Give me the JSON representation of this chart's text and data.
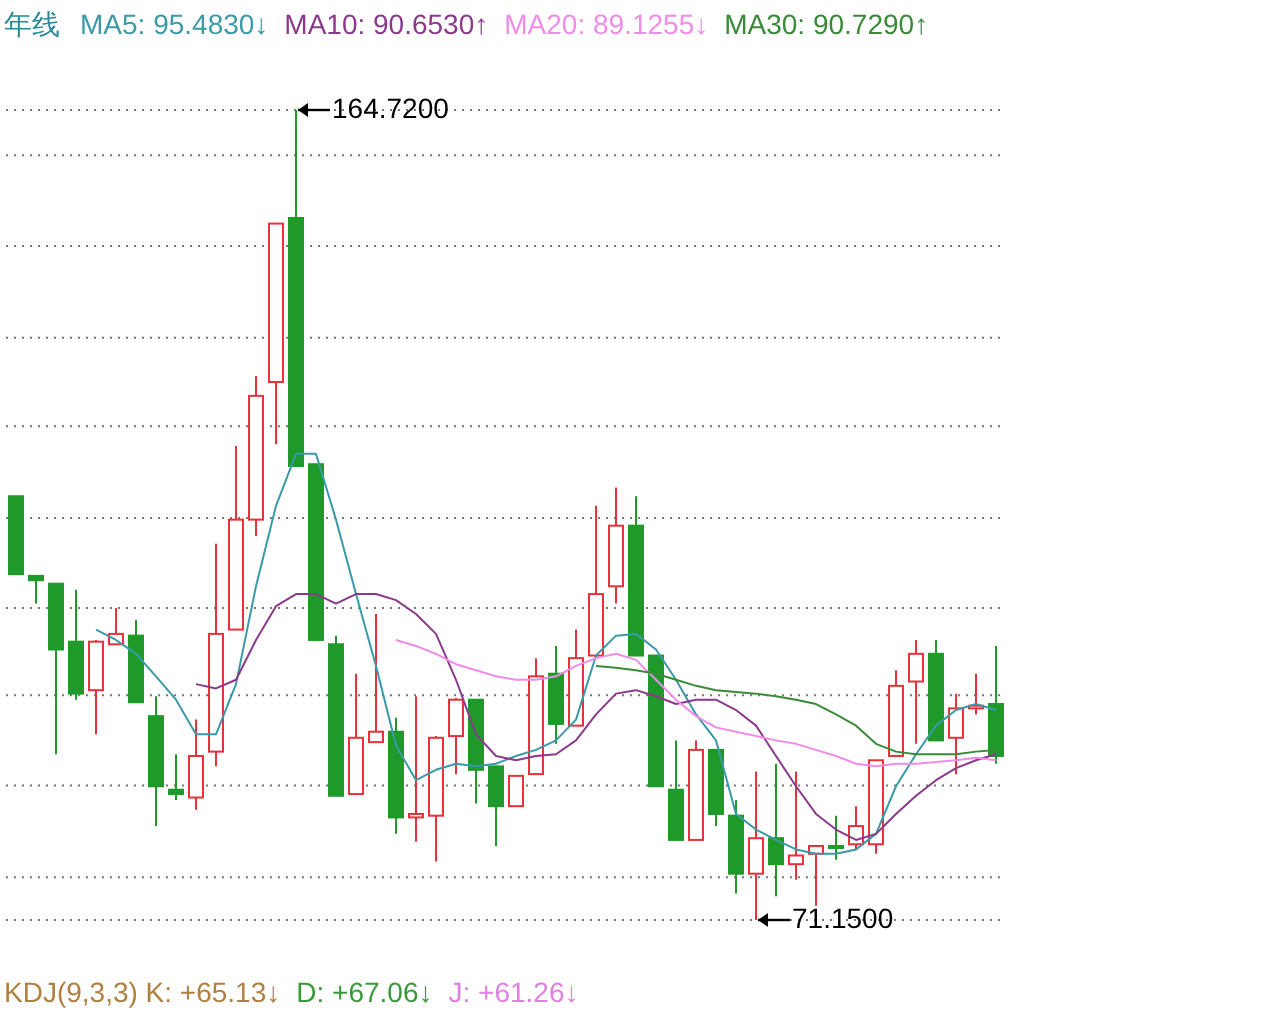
{
  "chart_data": {
    "type": "candlestick",
    "title": "年线",
    "categories": [
      null,
      null,
      null,
      null,
      null,
      null,
      null,
      null,
      null,
      null,
      null,
      null,
      null,
      null,
      null,
      null,
      null,
      null,
      null,
      null,
      null,
      null,
      null,
      null,
      null,
      null,
      null,
      null,
      null,
      null,
      null,
      null,
      null,
      null,
      null,
      null,
      null,
      null,
      null,
      null,
      null,
      null,
      null,
      null,
      null,
      null,
      null,
      null,
      null,
      null
    ],
    "ohlc": [
      [
        120.1,
        120.1,
        111.1,
        111.1
      ],
      [
        110.9,
        110.9,
        107.7,
        110.4
      ],
      [
        110.0,
        110.0,
        90.3,
        102.4
      ],
      [
        103.3,
        109.3,
        96.6,
        97.3
      ],
      [
        97.7,
        103.5,
        92.6,
        103.3
      ],
      [
        103.0,
        107.2,
        103.0,
        104.2
      ],
      [
        104.0,
        105.8,
        96.3,
        96.3
      ],
      [
        94.7,
        97.0,
        82.0,
        86.6
      ],
      [
        86.2,
        90.3,
        85.0,
        85.7
      ],
      [
        85.3,
        94.3,
        83.9,
        90.1
      ],
      [
        90.6,
        114.6,
        88.9,
        104.2
      ],
      [
        104.7,
        125.9,
        104.7,
        117.4
      ],
      [
        117.4,
        134.0,
        115.5,
        131.7
      ],
      [
        133.3,
        151.6,
        126.1,
        151.6
      ],
      [
        152.25,
        164.72,
        123.6,
        123.6
      ],
      [
        123.8,
        123.8,
        103.5,
        103.5
      ],
      [
        103.0,
        104.0,
        85.5,
        85.5
      ],
      [
        85.7,
        99.6,
        85.7,
        92.2
      ],
      [
        91.7,
        106.5,
        91.7,
        92.9
      ],
      [
        92.9,
        94.5,
        81.1,
        83.0
      ],
      [
        83.0,
        97.0,
        80.2,
        83.4
      ],
      [
        83.2,
        92.4,
        77.9,
        92.2
      ],
      [
        92.4,
        96.8,
        88.0,
        96.6
      ],
      [
        96.6,
        96.6,
        84.6,
        88.5
      ],
      [
        88.9,
        88.9,
        79.7,
        84.3
      ],
      [
        84.3,
        87.8,
        84.3,
        87.8
      ],
      [
        88.0,
        101.4,
        88.0,
        99.3
      ],
      [
        99.6,
        102.8,
        91.5,
        93.8
      ],
      [
        93.6,
        104.7,
        93.6,
        101.4
      ],
      [
        101.7,
        119.0,
        101.4,
        108.8
      ],
      [
        109.7,
        121.1,
        107.7,
        116.7
      ],
      [
        116.7,
        120.1,
        101.7,
        101.7
      ],
      [
        101.7,
        101.7,
        86.6,
        86.6
      ],
      [
        86.2,
        91.9,
        80.4,
        80.4
      ],
      [
        80.4,
        91.9,
        80.4,
        90.8
      ],
      [
        90.8,
        90.8,
        82.0,
        83.4
      ],
      [
        83.2,
        85.0,
        74.2,
        76.5
      ],
      [
        76.5,
        88.3,
        71.15,
        80.6
      ],
      [
        80.6,
        89.2,
        73.9,
        77.6
      ],
      [
        77.6,
        88.3,
        75.8,
        78.6
      ],
      [
        78.8,
        79.7,
        72.8,
        79.7
      ],
      [
        79.7,
        83.2,
        78.1,
        79.5
      ],
      [
        79.9,
        84.3,
        79.3,
        82.0
      ],
      [
        79.9,
        89.6,
        78.8,
        89.6
      ],
      [
        90.1,
        100.0,
        90.1,
        98.2
      ],
      [
        98.7,
        103.5,
        91.5,
        101.9
      ],
      [
        101.9,
        103.5,
        91.9,
        91.9
      ],
      [
        92.2,
        97.3,
        88.0,
        95.6
      ],
      [
        95.6,
        99.6,
        94.9,
        95.9
      ],
      [
        96.1,
        102.8,
        89.2,
        90.1
      ]
    ],
    "colors": [
      "#1f9a2a",
      "#1f9a2a",
      "#1f9a2a",
      "#1f9a2a",
      "#e8313a",
      "#e8313a",
      "#1f9a2a",
      "#1f9a2a",
      "#1f9a2a",
      "#e8313a",
      "#e8313a",
      "#e8313a",
      "#e8313a",
      "#e8313a",
      "#1f9a2a",
      "#1f9a2a",
      "#1f9a2a",
      "#e8313a",
      "#e8313a",
      "#1f9a2a",
      "#e8313a",
      "#e8313a",
      "#e8313a",
      "#1f9a2a",
      "#1f9a2a",
      "#e8313a",
      "#e8313a",
      "#1f9a2a",
      "#e8313a",
      "#e8313a",
      "#e8313a",
      "#1f9a2a",
      "#1f9a2a",
      "#1f9a2a",
      "#e8313a",
      "#1f9a2a",
      "#1f9a2a",
      "#e8313a",
      "#1f9a2a",
      "#e8313a",
      "#e8313a",
      "#1f9a2a",
      "#e8313a",
      "#e8313a",
      "#e8313a",
      "#e8313a",
      "#1f9a2a",
      "#e8313a",
      "#e8313a",
      "#1f9a2a"
    ],
    "series": [
      {
        "name": "MA5: 95.4830↓",
        "type": "line",
        "color": "#3a9aa8",
        "values": [
          null,
          null,
          null,
          null,
          104.7,
          103.5,
          101.9,
          99.3,
          96.6,
          92.6,
          92.6,
          98.4,
          109.7,
          119.0,
          125.0,
          125.0,
          117.4,
          108.8,
          100.5,
          91.3,
          87.3,
          88.5,
          89.2,
          88.9,
          89.2,
          90.1,
          90.8,
          91.9,
          94.3,
          101.7,
          104.0,
          104.2,
          102.4,
          98.9,
          94.9,
          91.9,
          83.4,
          81.6,
          80.4,
          79.3,
          78.8,
          78.8,
          79.3,
          81.1,
          86.6,
          90.3,
          93.6,
          95.4,
          96.1,
          95.4
        ]
      },
      {
        "name": "MA10: 90.6530↑",
        "type": "line",
        "color": "#8b3a8b",
        "values": [
          null,
          null,
          null,
          null,
          null,
          null,
          null,
          null,
          null,
          98.4,
          97.9,
          98.9,
          103.5,
          107.4,
          108.8,
          108.8,
          107.7,
          108.8,
          108.8,
          108.1,
          106.5,
          104.2,
          98.9,
          92.6,
          90.1,
          89.6,
          90.1,
          90.3,
          91.9,
          94.9,
          97.3,
          97.7,
          97.0,
          96.1,
          96.6,
          96.6,
          95.4,
          93.6,
          90.1,
          86.6,
          83.4,
          81.6,
          80.4,
          81.1,
          83.4,
          85.5,
          87.3,
          88.7,
          89.6,
          90.3
        ]
      },
      {
        "name": "MA20: 89.1255↓",
        "type": "line",
        "color": "#f08ce8",
        "values": [
          null,
          null,
          null,
          null,
          null,
          null,
          null,
          null,
          null,
          null,
          null,
          null,
          null,
          null,
          null,
          null,
          null,
          null,
          null,
          103.5,
          102.8,
          101.9,
          100.7,
          100.0,
          99.3,
          98.9,
          98.9,
          99.3,
          100.5,
          101.4,
          101.9,
          101.2,
          98.9,
          96.6,
          94.7,
          93.4,
          92.9,
          92.4,
          91.9,
          91.5,
          90.8,
          90.1,
          89.2,
          88.9,
          89.2,
          89.2,
          89.4,
          89.6,
          89.9,
          89.6
        ]
      },
      {
        "name": "MA30: 90.7290↑",
        "type": "line",
        "color": "#3a8a3a",
        "values": [
          null,
          null,
          null,
          null,
          null,
          null,
          null,
          null,
          null,
          null,
          null,
          null,
          null,
          null,
          null,
          null,
          null,
          null,
          null,
          null,
          null,
          null,
          null,
          null,
          null,
          null,
          null,
          null,
          null,
          100.5,
          100.3,
          100.0,
          99.6,
          98.9,
          98.2,
          97.7,
          97.5,
          97.3,
          97.0,
          96.6,
          96.1,
          94.9,
          93.6,
          91.5,
          90.6,
          90.3,
          90.3,
          90.3,
          90.6,
          90.8
        ]
      }
    ],
    "yticks": [
      {
        "value": 159.5,
        "label": null
      },
      {
        "value": 149.0,
        "label": null
      },
      {
        "value": 138.4,
        "label": null
      },
      {
        "value": 128.2,
        "label": null
      },
      {
        "value": 117.6,
        "label": null
      },
      {
        "value": 107.2,
        "label": null
      },
      {
        "value": 97.1,
        "label": null
      },
      {
        "value": 86.7,
        "label": null
      },
      {
        "value": 76.1,
        "label": null
      }
    ],
    "grid": "y",
    "tick_labels": false,
    "legend": "top left",
    "annotations": [
      "164.7200",
      "71.1500",
      "KDJ(9,3,3) K: +65.13↓",
      "D: +67.06↓",
      "J: +61.26↓"
    ]
  }
}
